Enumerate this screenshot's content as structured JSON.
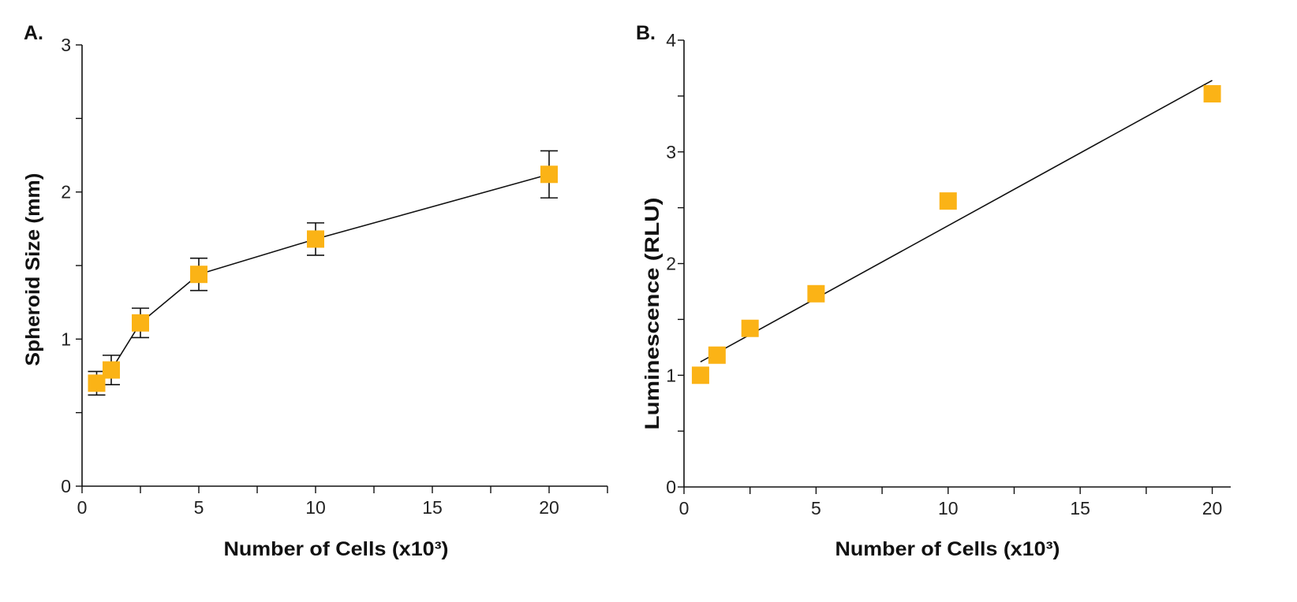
{
  "chart_data": [
    {
      "panel": "A.",
      "type": "line",
      "xlabel": "Number of Cells (x10³)",
      "ylabel": "Spheroid Size (mm)",
      "xlim": [
        0,
        22.5
      ],
      "ylim": [
        0,
        3
      ],
      "x_ticks": [
        0,
        5,
        10,
        15,
        20
      ],
      "y_ticks": [
        0,
        1,
        2,
        3
      ],
      "grid": false,
      "marker": "square",
      "marker_color": "#FBB316",
      "series": [
        {
          "x": [
            0.625,
            1.25,
            2.5,
            5,
            10,
            20
          ],
          "y": [
            0.7,
            0.79,
            1.11,
            1.44,
            1.68,
            2.12
          ],
          "error": [
            0.08,
            0.1,
            0.1,
            0.11,
            0.11,
            0.16
          ]
        }
      ]
    },
    {
      "panel": "B.",
      "type": "scatter",
      "xlabel": "Number of Cells (x10³)",
      "ylabel": "Luminescence (RLU)",
      "xlim": [
        0,
        20.7
      ],
      "ylim": [
        0,
        4
      ],
      "x_ticks": [
        0,
        5,
        10,
        15,
        20
      ],
      "y_ticks": [
        0,
        1,
        2,
        3,
        4
      ],
      "grid": false,
      "marker": "square",
      "marker_color": "#FBB316",
      "series": [
        {
          "x": [
            0.625,
            1.25,
            2.5,
            5,
            10,
            20
          ],
          "y": [
            1.0,
            1.18,
            1.42,
            1.73,
            2.56,
            3.52
          ]
        }
      ],
      "trendline": {
        "x": [
          0.625,
          20
        ],
        "y": [
          1.12,
          3.64
        ]
      }
    }
  ]
}
